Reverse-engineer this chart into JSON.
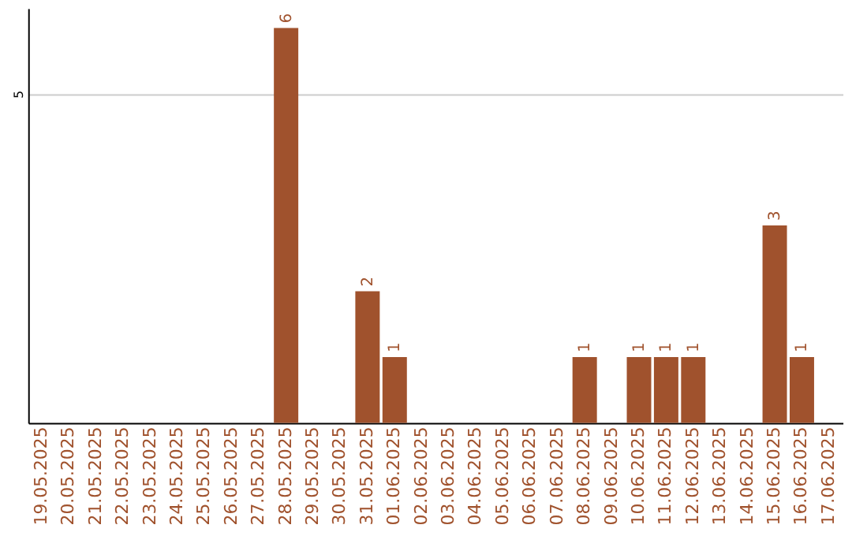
{
  "chart_data": {
    "type": "bar",
    "categories": [
      "19.05.2025",
      "20.05.2025",
      "21.05.2025",
      "22.05.2025",
      "23.05.2025",
      "24.05.2025",
      "25.05.2025",
      "26.05.2025",
      "27.05.2025",
      "28.05.2025",
      "29.05.2025",
      "30.05.2025",
      "31.05.2025",
      "01.06.2025",
      "02.06.2025",
      "03.06.2025",
      "04.06.2025",
      "05.06.2025",
      "06.06.2025",
      "07.06.2025",
      "08.06.2025",
      "09.06.2025",
      "10.06.2025",
      "11.06.2025",
      "12.06.2025",
      "13.06.2025",
      "14.06.2025",
      "15.06.2025",
      "16.06.2025",
      "17.06.2025"
    ],
    "values": [
      0,
      0,
      0,
      0,
      0,
      0,
      0,
      0,
      0,
      6,
      0,
      0,
      2,
      1,
      0,
      0,
      0,
      0,
      0,
      0,
      1,
      0,
      1,
      1,
      1,
      0,
      0,
      3,
      1,
      0
    ],
    "value_labels": [
      null,
      null,
      null,
      null,
      null,
      null,
      null,
      null,
      null,
      "6",
      null,
      null,
      "2",
      "1",
      null,
      null,
      null,
      null,
      null,
      null,
      "1",
      null,
      "1",
      "1",
      "1",
      null,
      null,
      "3",
      "1",
      null
    ],
    "color": "#a0522d",
    "ylim": [
      0,
      6.3
    ],
    "yticks": [
      5
    ],
    "grid": "y"
  }
}
